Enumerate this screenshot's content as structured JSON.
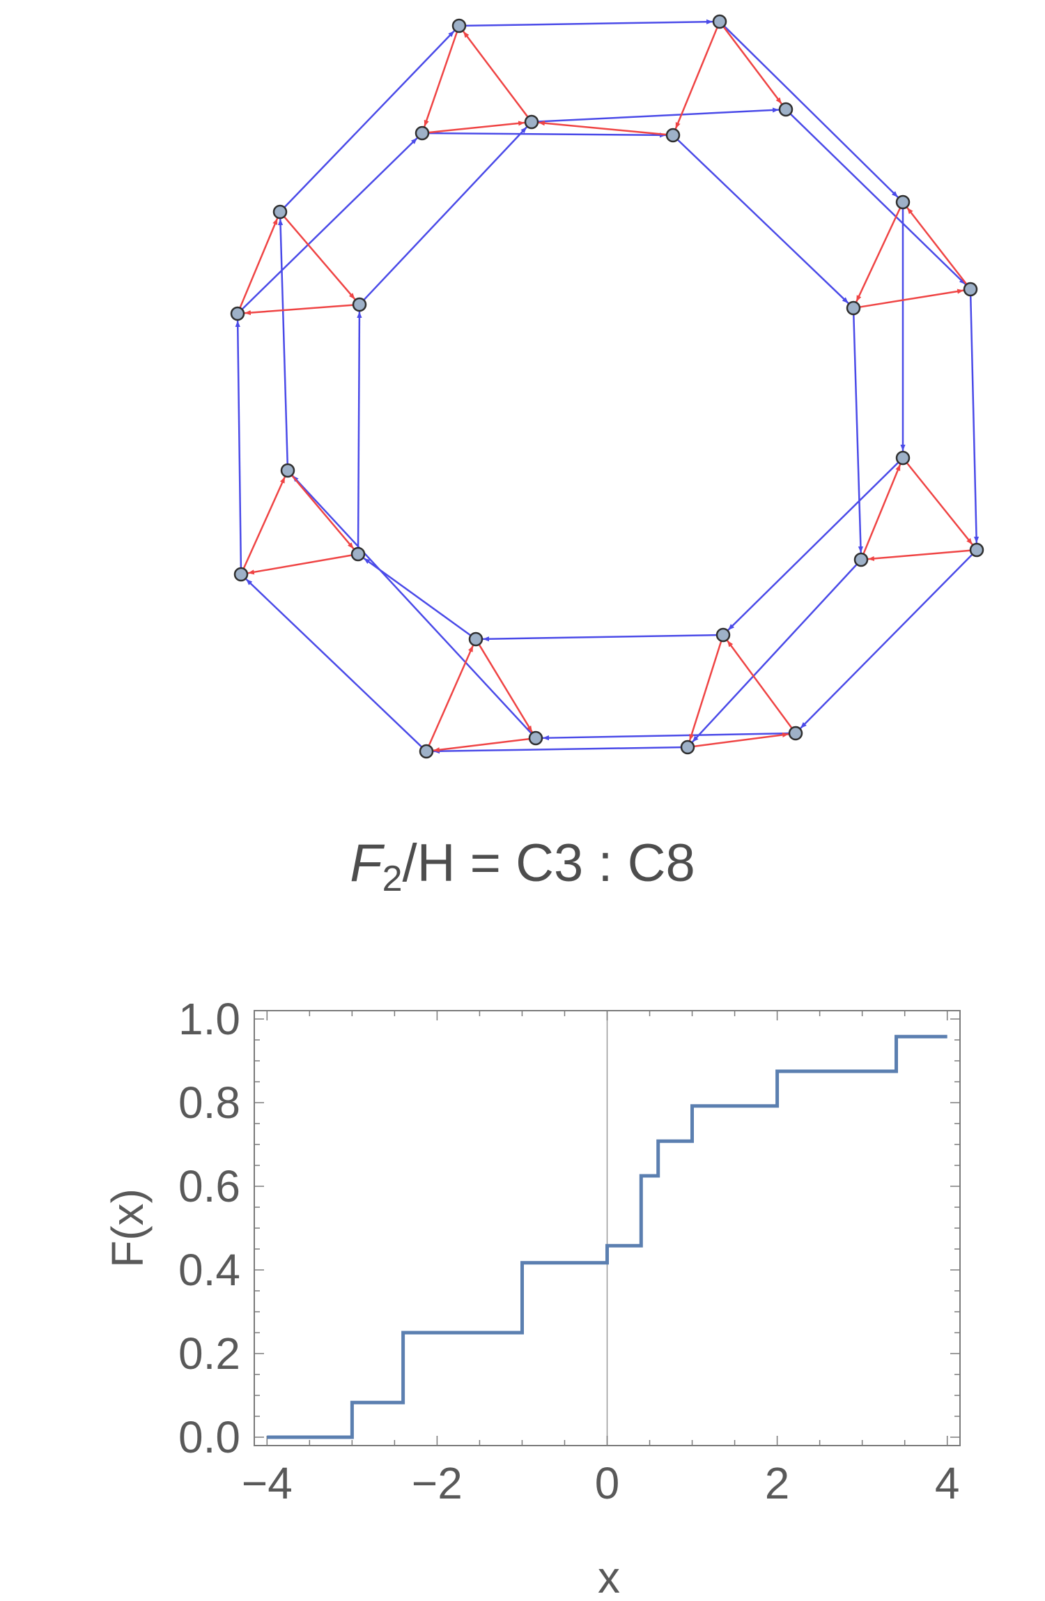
{
  "figure": {
    "caption": {
      "group": "F",
      "sub": "2",
      "rest": "/H = C3 : C8"
    },
    "graph": {
      "edge_colors": {
        "generator_a": "#ef4444",
        "generator_b": "#4a4ae8"
      },
      "node_fill": "#9eb1c8",
      "node_stroke": "#2f2f2f"
    }
  },
  "chart_data": {
    "type": "line",
    "step": true,
    "xlabel": "x",
    "ylabel": "F(x)",
    "xlim": [
      -4.15,
      4.15
    ],
    "ylim": [
      -0.02,
      1.02
    ],
    "x_ticks": [
      -4,
      -2,
      0,
      2,
      4
    ],
    "x_tick_labels": [
      "−4",
      "−2",
      "0",
      "2",
      "4"
    ],
    "y_ticks": [
      0.0,
      0.2,
      0.4,
      0.6,
      0.8,
      1.0
    ],
    "y_tick_labels": [
      "0.0",
      "0.2",
      "0.4",
      "0.6",
      "0.8",
      "1.0"
    ],
    "color": "#5b7fb0",
    "series": [
      {
        "x": [
          -4.0,
          -3.0,
          -3.0,
          -2.4,
          -2.4,
          -1.0,
          -1.0,
          0.0,
          0.0,
          0.4,
          0.4,
          0.6,
          0.6,
          1.0,
          1.0,
          2.0,
          2.0,
          3.4,
          3.4,
          4.0
        ],
        "y": [
          0.0,
          0.0,
          0.083,
          0.083,
          0.25,
          0.25,
          0.417,
          0.417,
          0.458,
          0.458,
          0.625,
          0.625,
          0.708,
          0.708,
          0.792,
          0.792,
          0.875,
          0.875,
          0.958,
          0.958
        ]
      }
    ]
  }
}
